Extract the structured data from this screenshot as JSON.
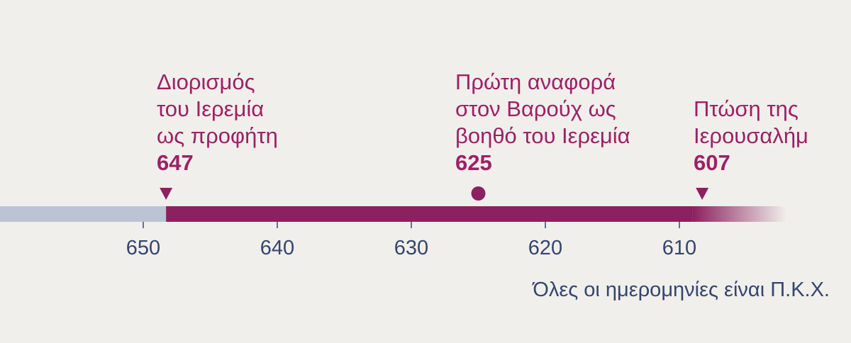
{
  "timeline": {
    "scale_min": 600,
    "scale_max": 659,
    "direction": "descending",
    "active_range": [
      648.3,
      602
    ],
    "ticks": [
      650,
      640,
      630,
      620,
      610
    ],
    "events": [
      {
        "lines": [
          "Διορισμός",
          "του Ιερεμία",
          "ως προφήτη"
        ],
        "year": "647",
        "marker": "triangle",
        "year_value": 648.3
      },
      {
        "lines": [
          "Πρώτη αναφορά",
          "στον Βαρούχ ως",
          "βοηθό του Ιερεμία"
        ],
        "year": "625",
        "marker": "dot",
        "year_value": 625
      },
      {
        "lines": [
          "Πτώση της",
          "Ιερουσαλήμ"
        ],
        "year": "607",
        "marker": "triangle",
        "year_value": 608.3
      }
    ],
    "footnote": "Όλες οι ημερομηνίες είναι Π.Κ.Χ."
  },
  "colors": {
    "background": "#f1efeb",
    "inactive_bar": "#bcc3d4",
    "active_bar": "#8c2160",
    "event_text": "#9c2165",
    "axis_text": "#34456e"
  }
}
